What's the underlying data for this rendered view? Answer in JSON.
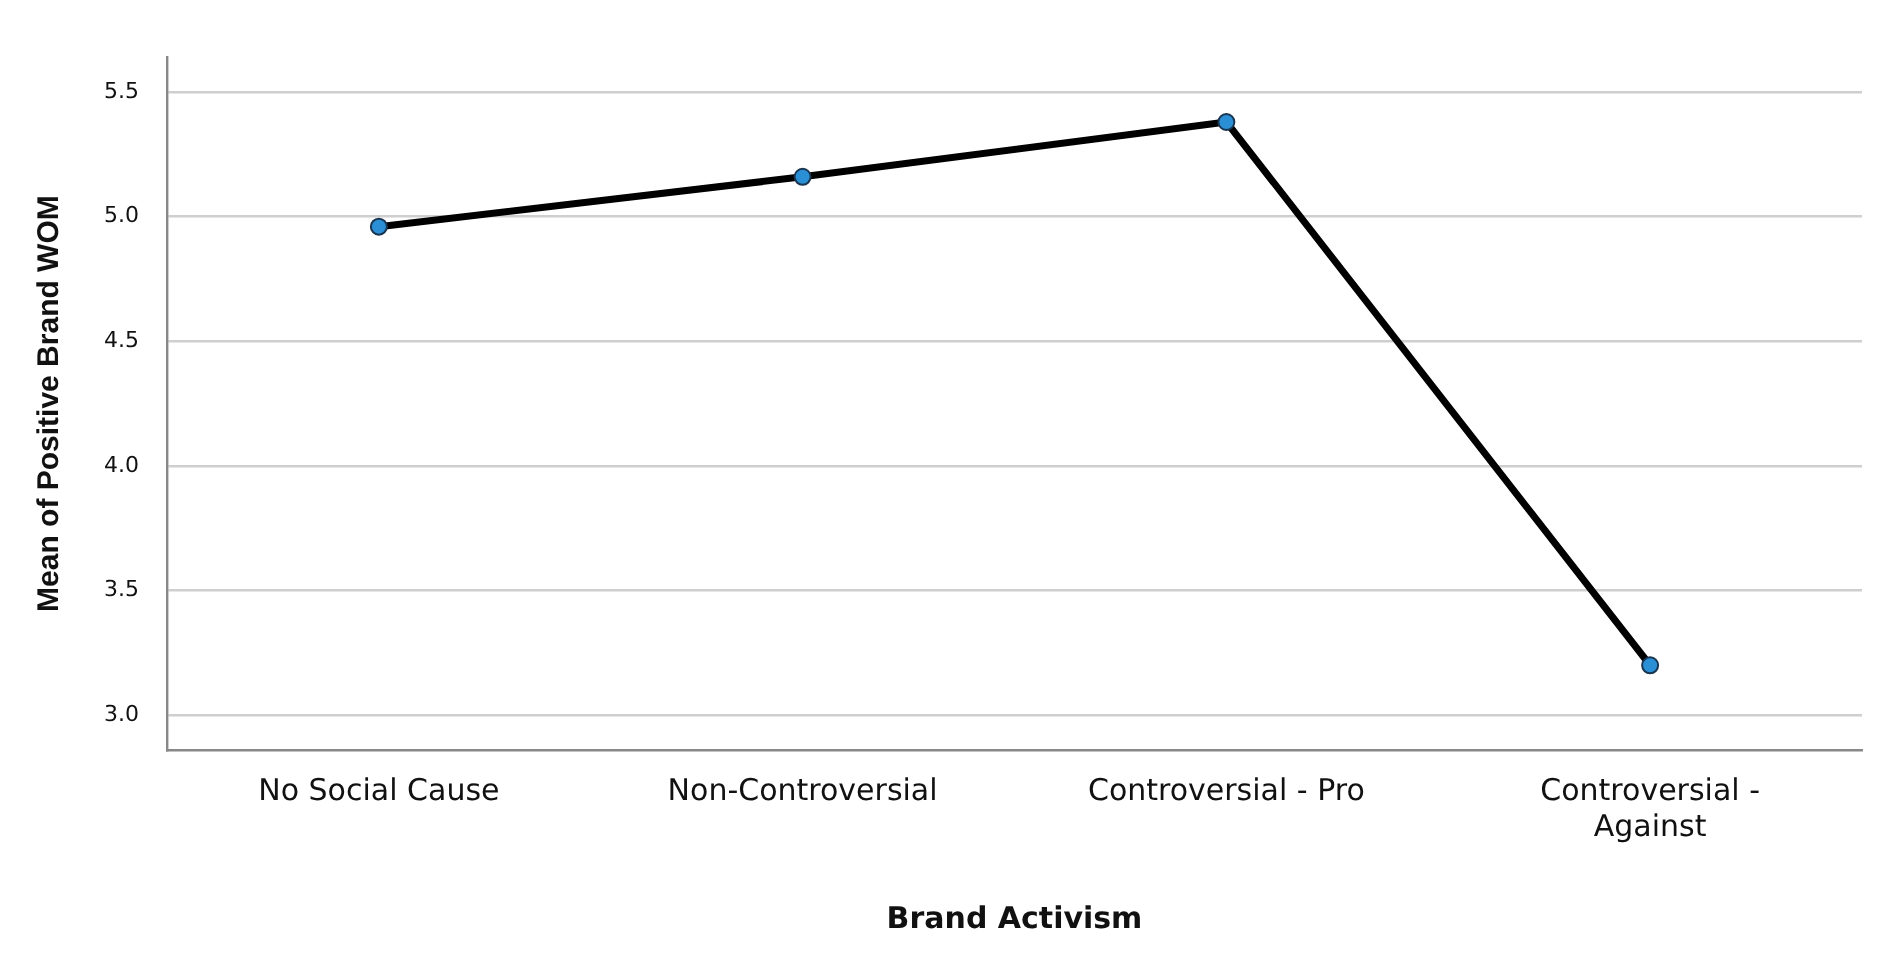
{
  "chart_data": {
    "type": "line",
    "xlabel": "Brand Activism",
    "ylabel": "Mean of Positive Brand WOM",
    "categories": [
      "No Social Cause",
      "Non-Controversial",
      "Controversial - Pro",
      "Controversial - Against"
    ],
    "series": [
      {
        "color": "#000000",
        "colors": [
          "#2b8fd6",
          "#2b8fd6",
          "#2b8fd6",
          "#2b8fd6"
        ],
        "values": [
          4.96,
          5.16,
          5.38,
          3.2
        ]
      }
    ],
    "ylim": [
      2.86,
      5.64
    ],
    "yticks": [
      {
        "value": 3,
        "label": "3.0"
      },
      3.5,
      {
        "value": 4,
        "label": "4.0"
      },
      4.5,
      {
        "value": 5,
        "label": "5.0"
      },
      5.5
    ],
    "grid": "y",
    "legend": false,
    "marker": "circle",
    "line_style": "solid"
  }
}
